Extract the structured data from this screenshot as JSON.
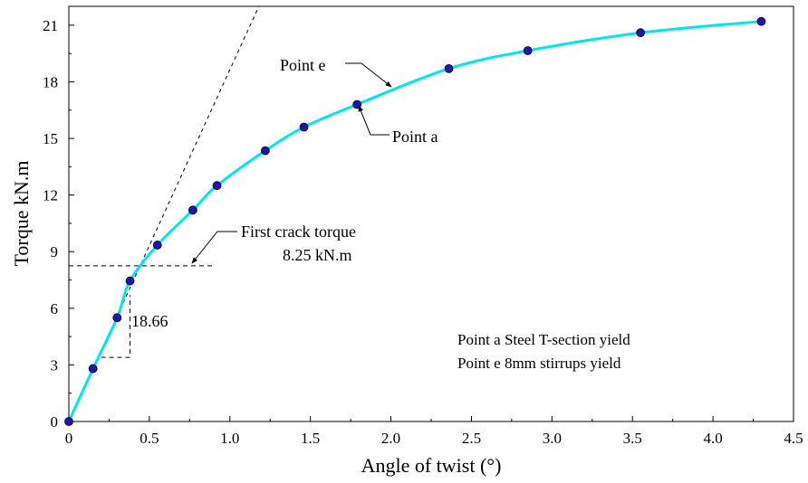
{
  "chart_data": {
    "type": "line",
    "xlabel": "Angle of twist (°)",
    "ylabel": "Torque kN.m",
    "xlim": [
      0,
      4.5
    ],
    "ylim": [
      0,
      22
    ],
    "xticks": [
      0,
      0.5,
      1.0,
      1.5,
      2.0,
      2.5,
      3.0,
      3.5,
      4.0,
      4.5
    ],
    "xtick_labels": [
      "0",
      "0.5",
      "1.0",
      "1.5",
      "2.0",
      "2.5",
      "3.0",
      "3.5",
      "4.0",
      "4.5"
    ],
    "yticks": [
      0,
      3,
      6,
      9,
      12,
      15,
      18,
      21
    ],
    "ytick_labels": [
      "0",
      "3",
      "6",
      "9",
      "12",
      "15",
      "18",
      "21"
    ],
    "grid": false,
    "series": [
      {
        "color": "#00e5ee",
        "marker_color": "#1a1aa6",
        "x": [
          0,
          0.15,
          0.3,
          0.38,
          0.55,
          0.77,
          0.92,
          1.22,
          1.46,
          1.79,
          2.36,
          2.85,
          3.55,
          4.3
        ],
        "y": [
          0,
          2.8,
          5.5,
          7.45,
          9.35,
          11.2,
          12.5,
          14.35,
          15.6,
          16.8,
          18.7,
          19.65,
          20.6,
          21.2
        ]
      }
    ],
    "tangent_line": {
      "x": [
        0,
        1.18
      ],
      "y": [
        0,
        22
      ]
    },
    "first_crack_line": {
      "x": [
        0,
        0.9
      ],
      "y": [
        8.25,
        8.25
      ]
    },
    "slope_step": {
      "x": [
        0.2,
        0.38,
        0.38
      ],
      "y": [
        3.4,
        3.4,
        6.7
      ]
    },
    "annotations": {
      "point_e": {
        "label": "Point e",
        "x": 1.98,
        "y": 17.9
      },
      "point_a": {
        "label": "Point a",
        "x": 1.78,
        "y": 16.9
      },
      "first_crack_line1": "First crack torque",
      "first_crack_line2": "8.25 kN.m",
      "slope": "18.66"
    },
    "legend": {
      "placement": "lower-right",
      "entries": [
        "Point a  Steel T-section yield",
        "Point e  8mm stirrups yield"
      ]
    }
  }
}
